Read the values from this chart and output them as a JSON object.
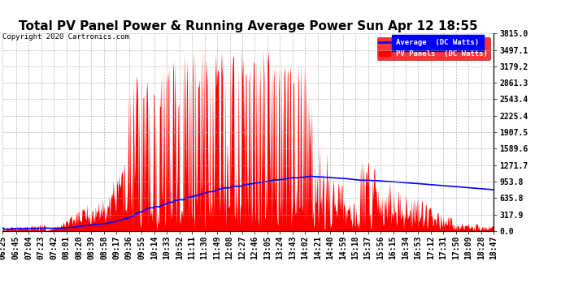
{
  "title": "Total PV Panel Power & Running Average Power Sun Apr 12 18:55",
  "copyright": "Copyright 2020 Cartronics.com",
  "ylabel_right_ticks": [
    0.0,
    317.9,
    635.8,
    953.8,
    1271.7,
    1589.6,
    1907.5,
    2225.4,
    2543.4,
    2861.3,
    3179.2,
    3497.1,
    3815.0
  ],
  "ylim": [
    0,
    3815.0
  ],
  "legend_labels": [
    "Average  (DC Watts)",
    "PV Panels  (DC Watts)"
  ],
  "bg_color": "#ffffff",
  "grid_color": "#aaaaaa",
  "title_fontsize": 11,
  "tick_label_fontsize": 7,
  "x_labels": [
    "06:25",
    "06:45",
    "07:04",
    "07:23",
    "07:42",
    "08:01",
    "08:20",
    "08:39",
    "08:58",
    "09:17",
    "09:36",
    "09:55",
    "10:14",
    "10:33",
    "10:52",
    "11:11",
    "11:30",
    "11:49",
    "12:08",
    "12:27",
    "12:46",
    "13:05",
    "13:24",
    "13:43",
    "14:02",
    "14:21",
    "14:40",
    "14:59",
    "15:18",
    "15:37",
    "15:56",
    "16:15",
    "16:34",
    "16:53",
    "17:12",
    "17:31",
    "17:50",
    "18:09",
    "18:28",
    "18:47"
  ],
  "start_hhmm": "06:25",
  "end_hhmm": "18:47"
}
